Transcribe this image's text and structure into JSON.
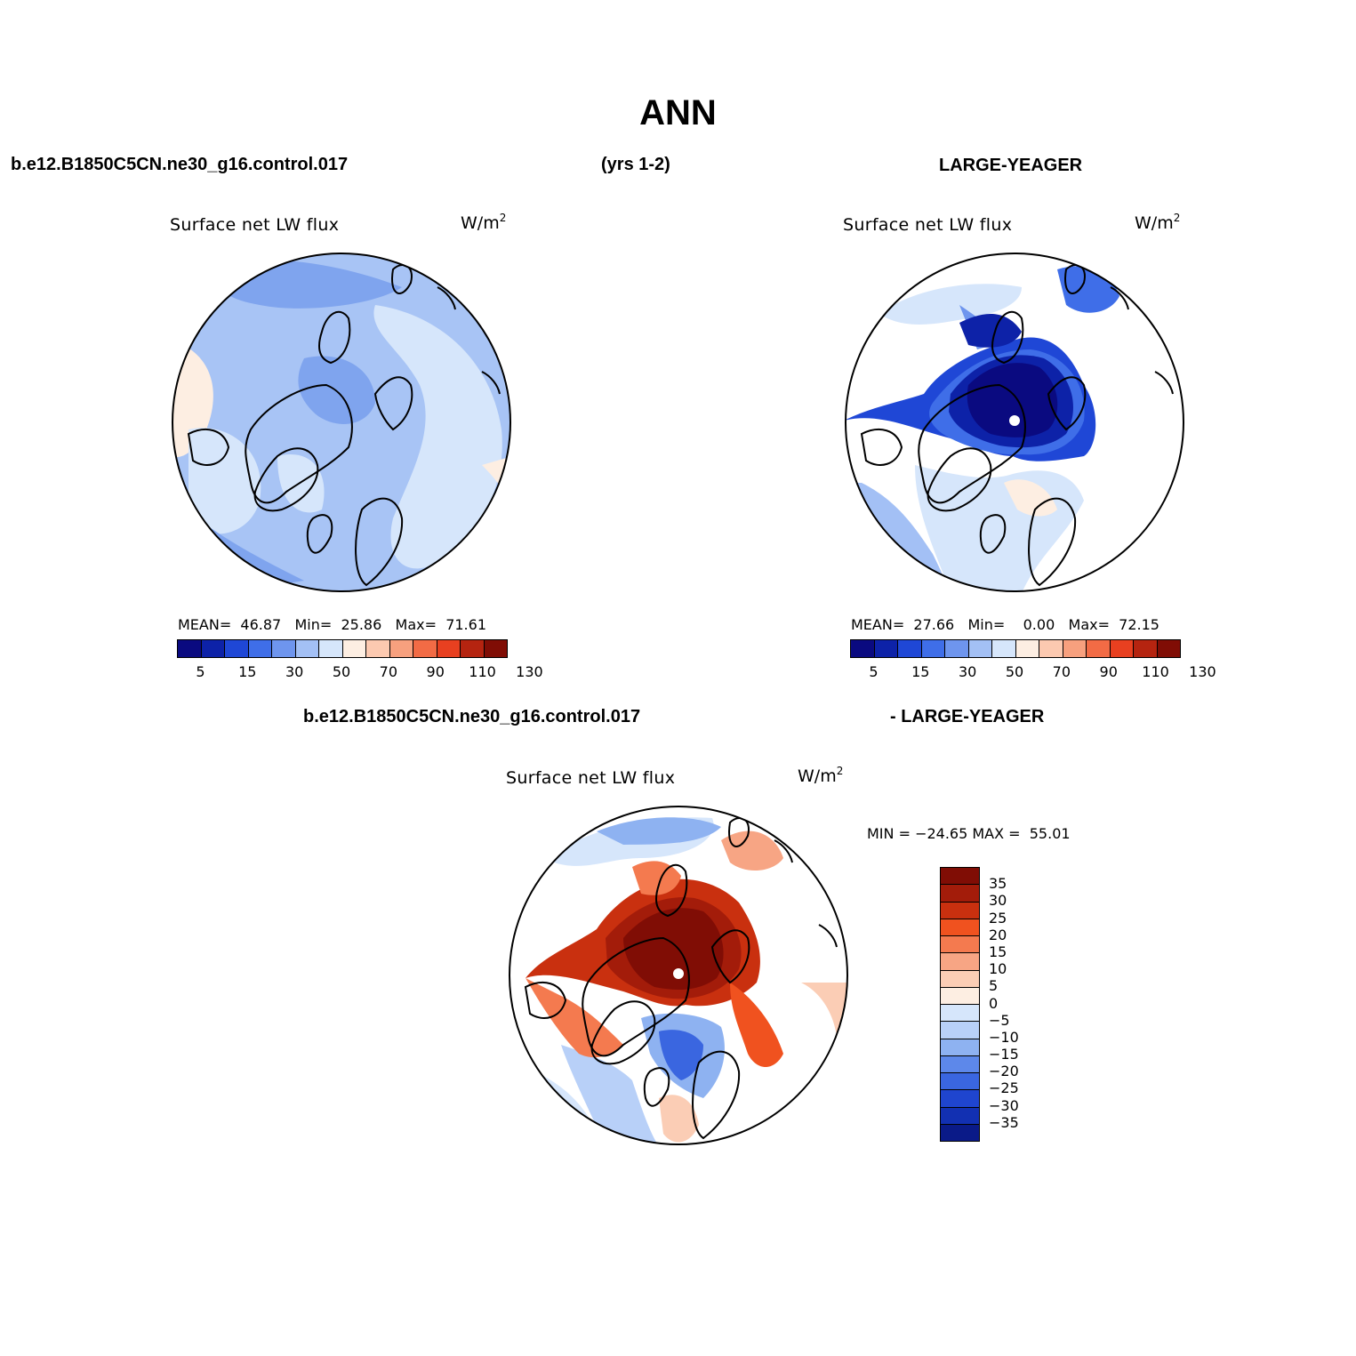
{
  "title": "ANN",
  "header": {
    "case_name": "b.e12.B1850C5CN.ne30_g16.control.017",
    "years": "(yrs 1-2)",
    "reference": "LARGE-YEAGER"
  },
  "diff_header": {
    "case_name": "b.e12.B1850C5CN.ne30_g16.control.017",
    "reference": "- LARGE-YEAGER"
  },
  "panels": [
    {
      "id": "case",
      "variable": "Surface net LW flux",
      "units_base": "W/m",
      "units_exp": "2",
      "stats": {
        "mean_label": "MEAN=",
        "mean": "46.87",
        "min_label": "Min=",
        "min": "25.86",
        "max_label": "Max=",
        "max": "71.61"
      }
    },
    {
      "id": "reference",
      "variable": "Surface net LW flux",
      "units_base": "W/m",
      "units_exp": "2",
      "stats": {
        "mean_label": "MEAN=",
        "mean": "27.66",
        "min_label": "Min=",
        "min": "0.00",
        "max_label": "Max=",
        "max": "72.15"
      }
    },
    {
      "id": "difference",
      "variable": "Surface net LW flux",
      "units_base": "W/m",
      "units_exp": "2",
      "minmax": "MIN = −24.65 MAX =  55.01"
    }
  ],
  "colorbar_abs": {
    "colors": [
      "#0a0a80",
      "#0d22a8",
      "#1f47d6",
      "#3f6ee8",
      "#6e95ee",
      "#a3c0f5",
      "#d6e6fb",
      "#fdeee2",
      "#fcc9b0",
      "#f7a07e",
      "#f26b45",
      "#e84020",
      "#b52410",
      "#800d05"
    ],
    "tick_labels": [
      "5",
      "15",
      "30",
      "50",
      "70",
      "90",
      "110",
      "130"
    ]
  },
  "colorbar_diff": {
    "colors": [
      "#800d05",
      "#a31c0a",
      "#c9300f",
      "#f0521f",
      "#f47a4f",
      "#f7a584",
      "#fbcdb5",
      "#fdeee2",
      "#d6e6fb",
      "#b8d0f8",
      "#8eb2f1",
      "#5d88ea",
      "#3a66e0",
      "#1f45cf",
      "#1230b2",
      "#0a1a88"
    ],
    "tick_labels": [
      "35",
      "30",
      "25",
      "20",
      "15",
      "10",
      "5",
      "0",
      "−5",
      "−10",
      "−15",
      "−20",
      "−25",
      "−30",
      "−35"
    ]
  }
}
